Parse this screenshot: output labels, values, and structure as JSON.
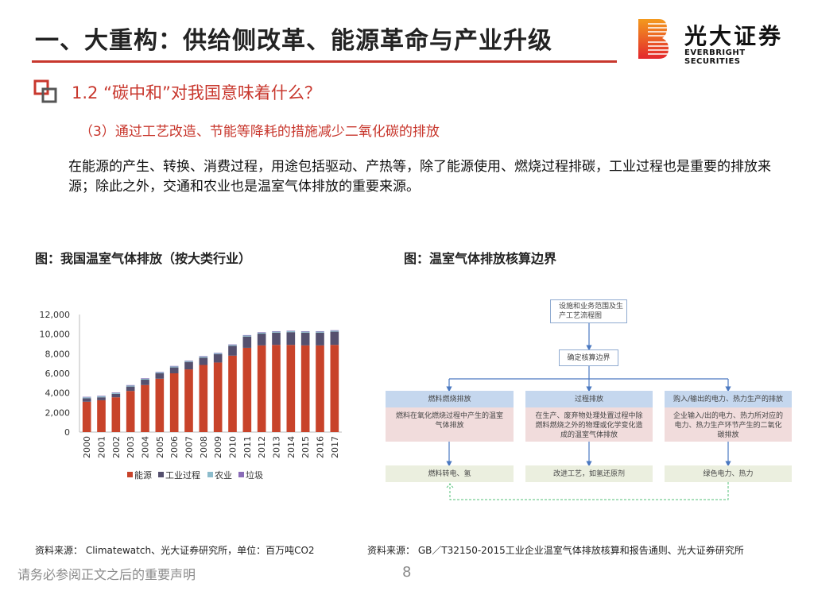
{
  "header": {
    "title": "一、大重构：供给侧改革、能源革命与产业升级",
    "logo": {
      "cn": "光大证券",
      "en": "EVERBRIGHT SECURITIES"
    }
  },
  "section": {
    "title": "1.2 “碳中和”对我国意味着什么？",
    "subtitle": "（3）通过工艺改造、节能等降耗的措施减少二氧化碳的排放",
    "paragraph": "在能源的产生、转换、消费过程，用途包括驱动、产热等，除了能源使用、燃烧过程排碳，工业过程也是重要的排放来源；除此之外，交通和农业也是温室气体排放的重要来源。"
  },
  "figure1": {
    "caption": "图：我国温室气体排放（按大类行业）",
    "source": "资料来源： Climatewatch、光大证券研究所，单位：百万吨CO2"
  },
  "figure2": {
    "caption": "图：温室气体排放核算边界",
    "source": "资料来源： GB／T32150-2015工业企业温室气体排放核算和报告通则、光大证券研究所",
    "top_box": "设施和业务范围及生产工艺流程图",
    "mid_box": "确定核算边界",
    "columns": [
      {
        "header": "燃料燃烧排放",
        "body": "燃料在氧化燃烧过程中产生的温室气体排放",
        "action": "燃料转电、氢"
      },
      {
        "header": "过程排放",
        "body": "在生产、废弃物处理处置过程中除燃料燃烧之外的物理或化学变化造成的温室气体排放",
        "action": "改进工艺，如氢还原剂"
      },
      {
        "header": "购入/输出的电力、热力生产的排放",
        "body": "企业输入/出的电力、热力所对应的电力、热力生产环节产生的二氧化碳排放",
        "action": "绿色电力、热力"
      }
    ]
  },
  "chart_data": {
    "type": "bar",
    "stacked": true,
    "categories": [
      "2000",
      "2001",
      "2002",
      "2003",
      "2004",
      "2005",
      "2006",
      "2007",
      "2008",
      "2009",
      "2010",
      "2011",
      "2012",
      "2013",
      "2014",
      "2015",
      "2016",
      "2017"
    ],
    "series": [
      {
        "name": "能源",
        "color": "#c8432a",
        "values": [
          3100,
          3250,
          3550,
          4200,
          4800,
          5450,
          6000,
          6400,
          6850,
          7100,
          7800,
          8600,
          8850,
          8900,
          8900,
          8850,
          8850,
          8900
        ]
      },
      {
        "name": "工业过程",
        "color": "#55506e",
        "values": [
          350,
          300,
          350,
          450,
          550,
          550,
          600,
          750,
          750,
          850,
          1000,
          1150,
          1200,
          1250,
          1300,
          1300,
          1300,
          1350
        ]
      },
      {
        "name": "农业",
        "color": "#8cbccc",
        "values": [
          100,
          100,
          100,
          100,
          100,
          100,
          100,
          100,
          100,
          100,
          100,
          100,
          100,
          100,
          100,
          100,
          100,
          100
        ]
      },
      {
        "name": "垃圾",
        "color": "#8a6cb8",
        "values": [
          50,
          50,
          50,
          50,
          50,
          50,
          50,
          50,
          50,
          50,
          50,
          50,
          50,
          50,
          50,
          50,
          50,
          50
        ]
      }
    ],
    "yticks": [
      "0",
      "2,000",
      "4,000",
      "6,000",
      "8,000",
      "10,000",
      "12,000"
    ],
    "ylim": [
      0,
      12000
    ],
    "grid": false,
    "legend": "bottom"
  },
  "footer": {
    "disclaimer": "请务必参阅正文之后的重要声明",
    "page": "8"
  }
}
